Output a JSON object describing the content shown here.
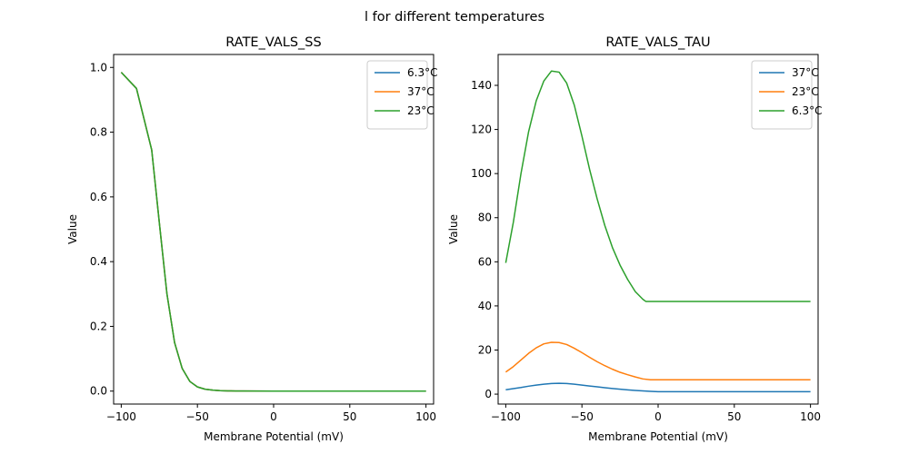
{
  "figure": {
    "suptitle": "l for different temperatures"
  },
  "chart_data": [
    {
      "type": "line",
      "title": "RATE_VALS_SS",
      "xlabel": "Membrane Potential (mV)",
      "ylabel": "Value",
      "xlim": [
        -105,
        105
      ],
      "ylim": [
        -0.04,
        1.04
      ],
      "xticks": [
        -100,
        -50,
        0,
        50,
        100
      ],
      "xtick_labels": [
        "−100",
        "−50",
        "0",
        "50",
        "100"
      ],
      "yticks": [
        0.0,
        0.2,
        0.4,
        0.6,
        0.8,
        1.0
      ],
      "ytick_labels": [
        "0.0",
        "0.2",
        "0.4",
        "0.6",
        "0.8",
        "1.0"
      ],
      "grid": false,
      "legend_position": "top-right",
      "series": [
        {
          "name": "6.3°C",
          "color": "#1f77b4",
          "x": [
            -100,
            -90,
            -80,
            -75,
            -70,
            -65,
            -60,
            -55,
            -50,
            -45,
            -40,
            -35,
            -30,
            -25,
            -20,
            0,
            50,
            100
          ],
          "y": [
            0.985,
            0.935,
            0.745,
            0.52,
            0.3,
            0.15,
            0.07,
            0.03,
            0.013,
            0.006,
            0.003,
            0.0015,
            0.0008,
            0.0004,
            0.0002,
            0.0,
            0.0,
            0.0
          ]
        },
        {
          "name": "37°C",
          "color": "#ff7f0e",
          "x": [
            -100,
            -90,
            -80,
            -75,
            -70,
            -65,
            -60,
            -55,
            -50,
            -45,
            -40,
            -35,
            -30,
            -25,
            -20,
            0,
            50,
            100
          ],
          "y": [
            0.985,
            0.935,
            0.745,
            0.52,
            0.3,
            0.15,
            0.07,
            0.03,
            0.013,
            0.006,
            0.003,
            0.0015,
            0.0008,
            0.0004,
            0.0002,
            0.0,
            0.0,
            0.0
          ]
        },
        {
          "name": "23°C",
          "color": "#2ca02c",
          "x": [
            -100,
            -90,
            -80,
            -75,
            -70,
            -65,
            -60,
            -55,
            -50,
            -45,
            -40,
            -35,
            -30,
            -25,
            -20,
            0,
            50,
            100
          ],
          "y": [
            0.985,
            0.935,
            0.745,
            0.52,
            0.3,
            0.15,
            0.07,
            0.03,
            0.013,
            0.006,
            0.003,
            0.0015,
            0.0008,
            0.0004,
            0.0002,
            0.0,
            0.0,
            0.0
          ]
        }
      ]
    },
    {
      "type": "line",
      "title": "RATE_VALS_TAU",
      "xlabel": "Membrane Potential (mV)",
      "ylabel": "Value",
      "xlim": [
        -105,
        105
      ],
      "ylim": [
        -4.5,
        154
      ],
      "xticks": [
        -100,
        -50,
        0,
        50,
        100
      ],
      "xtick_labels": [
        "−100",
        "−50",
        "0",
        "50",
        "100"
      ],
      "yticks": [
        0,
        20,
        40,
        60,
        80,
        100,
        120,
        140
      ],
      "ytick_labels": [
        "0",
        "20",
        "40",
        "60",
        "80",
        "100",
        "120",
        "140"
      ],
      "grid": false,
      "legend_position": "top-right",
      "series": [
        {
          "name": "37°C",
          "color": "#1f77b4",
          "x": [
            -100,
            -95,
            -90,
            -85,
            -80,
            -75,
            -70,
            -65,
            -60,
            -55,
            -50,
            -45,
            -40,
            -35,
            -30,
            -25,
            -20,
            -15,
            -10,
            -5,
            0,
            50,
            100
          ],
          "y": [
            2.0,
            2.5,
            3.0,
            3.6,
            4.1,
            4.5,
            4.8,
            4.9,
            4.8,
            4.5,
            4.1,
            3.7,
            3.3,
            2.9,
            2.55,
            2.25,
            1.95,
            1.7,
            1.45,
            1.25,
            1.1,
            1.1,
            1.1
          ]
        },
        {
          "name": "23°C",
          "color": "#ff7f0e",
          "x": [
            -100,
            -95,
            -90,
            -85,
            -80,
            -75,
            -70,
            -65,
            -60,
            -55,
            -50,
            -45,
            -40,
            -35,
            -30,
            -25,
            -20,
            -15,
            -10,
            -5,
            0,
            50,
            100
          ],
          "y": [
            10.0,
            12.5,
            15.5,
            18.5,
            21.0,
            22.8,
            23.5,
            23.4,
            22.5,
            20.8,
            18.8,
            16.7,
            14.7,
            12.9,
            11.3,
            9.9,
            8.8,
            7.8,
            6.9,
            6.5,
            6.5,
            6.5,
            6.5
          ]
        },
        {
          "name": "6.3°C",
          "color": "#2ca02c",
          "x": [
            -100,
            -95,
            -90,
            -85,
            -80,
            -75,
            -70,
            -65,
            -60,
            -55,
            -50,
            -45,
            -40,
            -35,
            -30,
            -25,
            -20,
            -15,
            -10,
            -8,
            0,
            50,
            100
          ],
          "y": [
            59.5,
            78.0,
            100.0,
            119.0,
            133.0,
            142.0,
            146.5,
            146.0,
            141.0,
            131.0,
            117.0,
            102.0,
            88.5,
            76.5,
            66.5,
            58.5,
            52.0,
            46.5,
            43.0,
            42.0,
            42.0,
            42.0,
            42.0
          ]
        }
      ]
    }
  ]
}
